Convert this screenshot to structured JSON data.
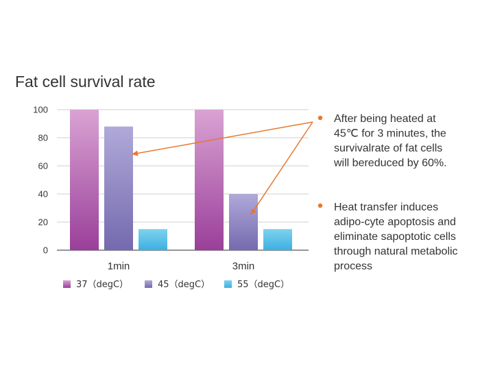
{
  "chart_data": {
    "type": "bar",
    "title": "Fat cell survival rate",
    "categories": [
      "1min",
      "3min"
    ],
    "series": [
      {
        "name": "37（degC）",
        "values": [
          100,
          100
        ],
        "color_top": "#d9a3d3",
        "color_bottom": "#9a3f9a"
      },
      {
        "name": "45（degC）",
        "values": [
          88,
          40
        ],
        "color_top": "#b0a9d9",
        "color_bottom": "#746aae"
      },
      {
        "name": "55（degC）",
        "values": [
          15,
          15
        ],
        "color_top": "#7dd2ef",
        "color_bottom": "#3db0e0"
      }
    ],
    "yticks": [
      0,
      20,
      40,
      60,
      80,
      100
    ],
    "ylim": [
      0,
      100
    ],
    "grid": true,
    "legend_position": "bottom"
  },
  "annotations": [
    {
      "lines": [
        "After being heated at",
        "45℃ for 3 minutes, the",
        "survivalrate of fat cells",
        "will bereduced by 60%."
      ]
    },
    {
      "lines": [
        "Heat transfer induces",
        "adipo-cyte apoptosis and",
        "eliminate sapoptotic cells",
        "through natural metabolic",
        "process"
      ]
    }
  ],
  "colors": {
    "accent": "#e6782e",
    "grid": "#cfcfcf",
    "axis": "#555555"
  }
}
